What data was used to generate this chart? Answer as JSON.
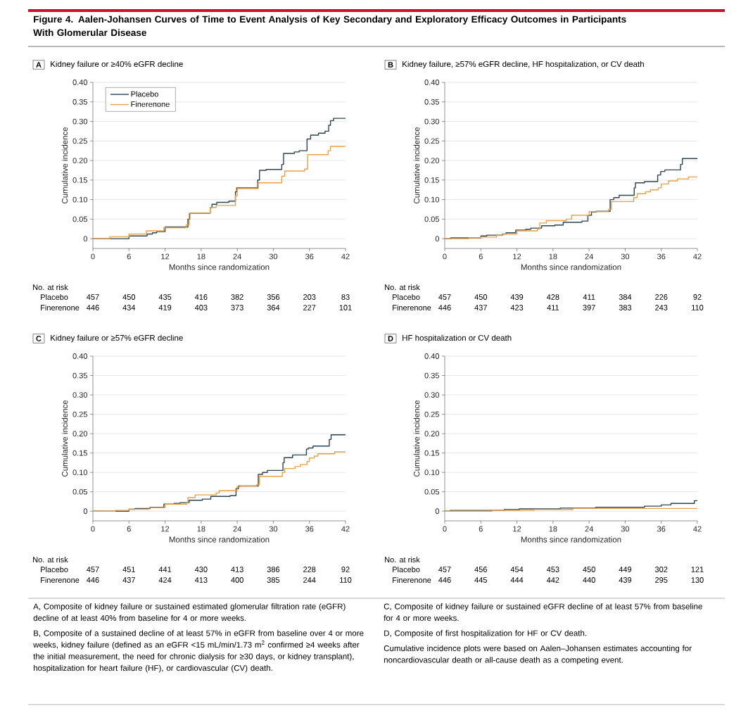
{
  "chart_data": [
    {
      "type": "other",
      "title": "Figure 4. Aalen-Johansen Curves of Time to Event Analysis of Key Secondary and Exploratory Efficacy Outcomes in Participants With Glomerular Disease"
    },
    {
      "type": "step",
      "title": "Kidney failure or ≥40% eGFR decline",
      "xlabel": "Months since randomization",
      "ylabel": "Cumulative incidence",
      "xlim": [
        0,
        42
      ],
      "xticks": [
        0,
        6,
        12,
        18,
        24,
        30,
        36,
        42
      ],
      "ylim": [
        -0.025,
        0.4
      ],
      "yticks": [
        0,
        0.05,
        {
          "value": 0.1,
          "label": "0.10"
        },
        0.15,
        {
          "value": 0.2,
          "label": "0.20"
        },
        0.25,
        {
          "value": 0.3,
          "label": "0.30"
        },
        0.35,
        {
          "value": 0.4,
          "label": "0.40"
        }
      ],
      "grid": "y",
      "legend": "top left",
      "series": [
        {
          "name": "Placebo",
          "color": "#2e4450",
          "x": [
            0,
            6,
            9,
            9.9,
            10.6,
            12,
            15.8,
            16.1,
            19.5,
            19.8,
            20.6,
            22.6,
            23.7,
            23.9,
            27.4,
            27.7,
            28.8,
            31.4,
            31.7,
            33.5,
            34.3,
            35.6,
            36.2,
            37.5,
            38.6,
            39.2,
            39.5,
            40,
            42
          ],
          "values": [
            0,
            0.007,
            0.012,
            0.015,
            0.018,
            0.03,
            0.05,
            0.065,
            0.08,
            0.088,
            0.093,
            0.096,
            0.12,
            0.13,
            0.15,
            0.175,
            0.177,
            0.19,
            0.218,
            0.222,
            0.225,
            0.255,
            0.265,
            0.27,
            0.275,
            0.29,
            0.302,
            0.308,
            0.308
          ]
        },
        {
          "name": "Finerenone",
          "color": "#e5a24b",
          "x": [
            0,
            2.8,
            6,
            8.9,
            11.8,
            15.5,
            16,
            19.5,
            20.5,
            23.7,
            24,
            27.5,
            31.4,
            31.9,
            35.2,
            35.7,
            39.1,
            39.5,
            42
          ],
          "values": [
            0,
            0.005,
            0.012,
            0.02,
            0.028,
            0.035,
            0.065,
            0.08,
            0.085,
            0.11,
            0.128,
            0.143,
            0.16,
            0.173,
            0.178,
            0.215,
            0.225,
            0.236,
            0.236
          ]
        }
      ],
      "annotations": [
        "A",
        "No. at risk",
        "Placebo",
        "Finerenone",
        "457",
        "450",
        "435",
        "416",
        "382",
        "356",
        "203",
        "83",
        "446",
        "434",
        "419",
        "403",
        "373",
        "364",
        "227",
        "101"
      ]
    },
    {
      "type": "step",
      "title": "Kidney failure, ≥57% eGFR decline, HF hospitalization, or CV death",
      "xlabel": "Months since randomization",
      "ylabel": "Cumulative incidence",
      "xlim": [
        0,
        42
      ],
      "xticks": [
        0,
        6,
        12,
        18,
        24,
        30,
        36,
        42
      ],
      "ylim": [
        -0.025,
        0.4
      ],
      "yticks": [
        0,
        0.05,
        {
          "value": 0.1,
          "label": "0.10"
        },
        0.15,
        {
          "value": 0.2,
          "label": "0.20"
        },
        0.25,
        {
          "value": 0.3,
          "label": "0.30"
        },
        0.35,
        {
          "value": 0.4,
          "label": "0.40"
        }
      ],
      "grid": "y",
      "series": [
        {
          "color": "#2e4450",
          "x": [
            0,
            1,
            6,
            7,
            9.6,
            10.2,
            11.8,
            13.5,
            14.3,
            16.1,
            18.3,
            19.7,
            22.8,
            23.8,
            24.4,
            25.2,
            27.5,
            28.1,
            29,
            31.5,
            31.7,
            33.2,
            35.4,
            35.9,
            36.6,
            39.2,
            39.5,
            42
          ],
          "values": [
            0,
            0.002,
            0.007,
            0.009,
            0.012,
            0.015,
            0.022,
            0.024,
            0.027,
            0.033,
            0.035,
            0.042,
            0.045,
            0.06,
            0.068,
            0.07,
            0.1,
            0.105,
            0.111,
            0.13,
            0.143,
            0.146,
            0.163,
            0.172,
            0.176,
            0.19,
            0.205,
            0.205
          ]
        },
        {
          "color": "#e5a24b",
          "x": [
            0,
            4,
            6,
            8.6,
            9.5,
            12,
            15.4,
            15.8,
            16.9,
            20.2,
            21.1,
            24,
            27.2,
            27.7,
            31.4,
            32,
            33.4,
            34.2,
            35.5,
            36,
            37.2,
            38.7,
            40.5,
            42
          ],
          "values": [
            0,
            0.002,
            0.004,
            0.008,
            0.012,
            0.02,
            0.025,
            0.04,
            0.046,
            0.05,
            0.06,
            0.069,
            0.075,
            0.095,
            0.105,
            0.115,
            0.12,
            0.125,
            0.13,
            0.14,
            0.148,
            0.153,
            0.158,
            0.158
          ]
        }
      ],
      "annotations": [
        "B",
        "No. at risk",
        "Placebo",
        "Finerenone",
        "457",
        "450",
        "439",
        "428",
        "411",
        "384",
        "226",
        "92",
        "446",
        "437",
        "423",
        "411",
        "397",
        "383",
        "243",
        "110"
      ]
    },
    {
      "type": "step",
      "title": "Kidney failure or ≥57% eGFR decline",
      "xlabel": "Months since randomization",
      "ylabel": "Cumulative incidence",
      "xlim": [
        0,
        42
      ],
      "xticks": [
        0,
        6,
        12,
        18,
        24,
        30,
        36,
        42
      ],
      "ylim": [
        -0.025,
        0.4
      ],
      "yticks": [
        0,
        0.05,
        {
          "value": 0.1,
          "label": "0.10"
        },
        0.15,
        {
          "value": 0.2,
          "label": "0.20"
        },
        0.25,
        {
          "value": 0.3,
          "label": "0.30"
        },
        0.35,
        {
          "value": 0.4,
          "label": "0.40"
        }
      ],
      "grid": "y",
      "series": [
        {
          "color": "#2e4450",
          "x": [
            0,
            6,
            7,
            9.5,
            11.8,
            13.5,
            14.5,
            16,
            18.2,
            19.6,
            22.8,
            23.8,
            24.2,
            27.5,
            28.2,
            29,
            31.6,
            31.8,
            33.2,
            35.5,
            35.8,
            36.6,
            39.3,
            39.6,
            42
          ],
          "values": [
            0,
            0.005,
            0.007,
            0.01,
            0.018,
            0.02,
            0.022,
            0.028,
            0.031,
            0.038,
            0.04,
            0.058,
            0.065,
            0.095,
            0.1,
            0.105,
            0.125,
            0.138,
            0.145,
            0.16,
            0.163,
            0.168,
            0.185,
            0.197,
            0.197
          ]
        },
        {
          "color": "#e5a24b",
          "x": [
            0,
            3.7,
            6,
            9.3,
            12,
            15.6,
            15.8,
            17,
            20.5,
            21,
            24,
            24.5,
            27.2,
            27.7,
            31.5,
            31.9,
            33.6,
            34.5,
            35.6,
            36,
            36.8,
            37.4,
            40.2,
            42
          ],
          "values": [
            0,
            0.002,
            0.005,
            0.009,
            0.018,
            0.022,
            0.035,
            0.042,
            0.047,
            0.053,
            0.063,
            0.065,
            0.068,
            0.09,
            0.1,
            0.11,
            0.115,
            0.12,
            0.128,
            0.137,
            0.142,
            0.148,
            0.153,
            0.153
          ]
        }
      ],
      "annotations": [
        "C",
        "No. at risk",
        "Placebo",
        "Finerenone",
        "457",
        "451",
        "441",
        "430",
        "413",
        "386",
        "228",
        "92",
        "446",
        "437",
        "424",
        "413",
        "400",
        "385",
        "244",
        "110"
      ]
    },
    {
      "type": "step",
      "title": "HF hospitalization or CV death",
      "xlabel": "Months since randomization",
      "ylabel": "Cumulative incidence",
      "xlim": [
        0,
        42
      ],
      "xticks": [
        0,
        6,
        12,
        18,
        24,
        30,
        36,
        42
      ],
      "ylim": [
        -0.025,
        0.4
      ],
      "yticks": [
        0,
        0.05,
        {
          "value": 0.1,
          "label": "0.10"
        },
        0.15,
        {
          "value": 0.2,
          "label": "0.20"
        },
        0.25,
        {
          "value": 0.3,
          "label": "0.30"
        },
        0.35,
        {
          "value": 0.4,
          "label": "0.40"
        }
      ],
      "grid": "y",
      "series": [
        {
          "color": "#2e4450",
          "x": [
            0,
            0.9,
            9.9,
            12.4,
            19.2,
            25.1,
            33.2,
            36,
            37.6,
            41.5,
            42
          ],
          "values": [
            0,
            0.002,
            0.004,
            0.006,
            0.008,
            0.01,
            0.013,
            0.016,
            0.02,
            0.027,
            0.027
          ]
        },
        {
          "color": "#e5a24b",
          "x": [
            0,
            7.9,
            14.8,
            21.3,
            42
          ],
          "values": [
            0,
            0.002,
            0.004,
            0.007,
            0.007
          ]
        }
      ],
      "annotations": [
        "D",
        "No. at risk",
        "Placebo",
        "Finerenone",
        "457",
        "456",
        "454",
        "453",
        "450",
        "449",
        "302",
        "121",
        "446",
        "445",
        "444",
        "442",
        "440",
        "439",
        "295",
        "130"
      ]
    },
    {
      "type": "other",
      "annotations": [
        "A, Composite of kidney failure or sustained estimated glomerular filtration rate (eGFR) decline of at least 40% from baseline for 4 or more weeks.",
        "B, Composite of a sustained decline of at least 57% in eGFR from baseline over 4 or more weeks, kidney failure (defined as an eGFR <15 mL/min/1.73 m$^{2}$ confirmed ≥4 weeks after the initial measurement, the need for chronic dialysis for ≥30 days, or kidney transplant), hospitalization for heart failure (HF), or cardiovascular (CV) death.",
        "C, Composite of kidney failure or sustained eGFR decline of at least 57% from baseline for 4 or more weeks.",
        "D, Composite of first hospitalization for HF or CV death.",
        "Cumulative incidence plots were based on Aalen–Johansen estimates accounting for noncardiovascular death or all-cause death as a competing event."
      ]
    }
  ]
}
